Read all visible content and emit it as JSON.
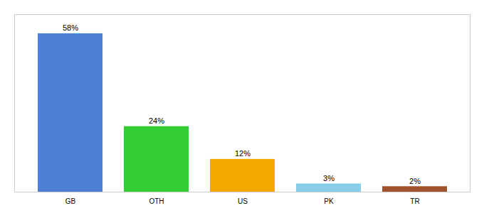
{
  "chart_data": {
    "type": "bar",
    "categories": [
      "GB",
      "OTH",
      "US",
      "PK",
      "TR"
    ],
    "values": [
      58,
      24,
      12,
      3,
      2
    ],
    "value_labels": [
      "58%",
      "24%",
      "12%",
      "3%",
      "2%"
    ],
    "colors": [
      "#4d7fd4",
      "#33cc33",
      "#f5a800",
      "#87ceeb",
      "#a0522d"
    ],
    "ylim": [
      0,
      65
    ],
    "data_labels": true,
    "tick_labels": "x",
    "grid": false
  }
}
